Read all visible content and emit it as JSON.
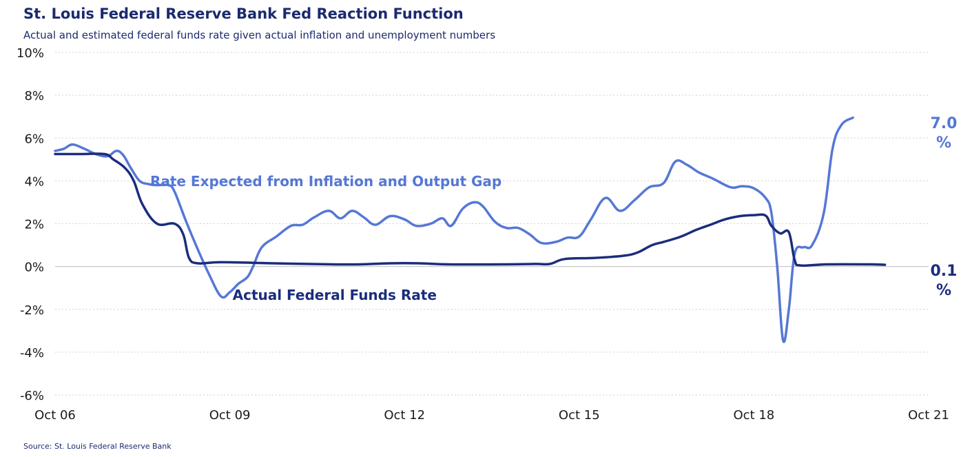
{
  "title": "St. Louis Federal Reserve Bank Fed Reaction Function",
  "subtitle": "Actual and estimated federal funds rate given actual inflation and unemployment numbers",
  "source": "Source: St. Louis Federal Reserve Bank",
  "chart_data": {
    "type": "line",
    "ylim": [
      -6,
      10
    ],
    "ytick_values": [
      -6,
      -4,
      -2,
      0,
      2,
      4,
      6,
      8,
      10
    ],
    "ytick_labels": [
      "-6%",
      "-4%",
      "-2%",
      "0%",
      "2%",
      "4%",
      "6%",
      "8%",
      "10%"
    ],
    "xlim": [
      2006.75,
      2021.75
    ],
    "xtick_values": [
      2006.75,
      2009.75,
      2012.75,
      2015.75,
      2018.75,
      2021.75
    ],
    "xtick_labels": [
      "Oct 06",
      "Oct 09",
      "Oct 12",
      "Oct 15",
      "Oct 18",
      "Oct 21"
    ],
    "grid": "horizontal dotted",
    "series": [
      {
        "name": "Rate Expected from Inflation and Output Gap",
        "color": "#5577d6",
        "end_label_line1": "7.0",
        "end_label_line2": "%",
        "points": [
          [
            2006.75,
            5.4
          ],
          [
            2006.9,
            5.5
          ],
          [
            2007.05,
            5.7
          ],
          [
            2007.25,
            5.5
          ],
          [
            2007.45,
            5.25
          ],
          [
            2007.65,
            5.15
          ],
          [
            2007.8,
            5.4
          ],
          [
            2007.92,
            5.2
          ],
          [
            2008.05,
            4.6
          ],
          [
            2008.2,
            4.0
          ],
          [
            2008.35,
            3.85
          ],
          [
            2008.5,
            3.8
          ],
          [
            2008.7,
            3.8
          ],
          [
            2008.8,
            3.5
          ],
          [
            2009.0,
            2.1
          ],
          [
            2009.2,
            0.8
          ],
          [
            2009.4,
            -0.4
          ],
          [
            2009.6,
            -1.4
          ],
          [
            2009.75,
            -1.2
          ],
          [
            2009.9,
            -0.8
          ],
          [
            2010.05,
            -0.5
          ],
          [
            2010.15,
            0.0
          ],
          [
            2010.3,
            0.9
          ],
          [
            2010.55,
            1.4
          ],
          [
            2010.8,
            1.9
          ],
          [
            2011.0,
            1.95
          ],
          [
            2011.2,
            2.3
          ],
          [
            2011.45,
            2.6
          ],
          [
            2011.65,
            2.25
          ],
          [
            2011.85,
            2.6
          ],
          [
            2012.05,
            2.3
          ],
          [
            2012.25,
            1.95
          ],
          [
            2012.5,
            2.35
          ],
          [
            2012.75,
            2.2
          ],
          [
            2012.95,
            1.9
          ],
          [
            2013.2,
            2.0
          ],
          [
            2013.4,
            2.25
          ],
          [
            2013.55,
            1.9
          ],
          [
            2013.75,
            2.7
          ],
          [
            2013.95,
            3.0
          ],
          [
            2014.1,
            2.8
          ],
          [
            2014.3,
            2.1
          ],
          [
            2014.5,
            1.8
          ],
          [
            2014.7,
            1.8
          ],
          [
            2014.9,
            1.5
          ],
          [
            2015.1,
            1.1
          ],
          [
            2015.35,
            1.15
          ],
          [
            2015.55,
            1.35
          ],
          [
            2015.75,
            1.4
          ],
          [
            2015.95,
            2.2
          ],
          [
            2016.2,
            3.2
          ],
          [
            2016.45,
            2.6
          ],
          [
            2016.7,
            3.1
          ],
          [
            2016.95,
            3.7
          ],
          [
            2017.2,
            3.9
          ],
          [
            2017.4,
            4.9
          ],
          [
            2017.6,
            4.75
          ],
          [
            2017.8,
            4.4
          ],
          [
            2018.05,
            4.1
          ],
          [
            2018.35,
            3.7
          ],
          [
            2018.55,
            3.75
          ],
          [
            2018.75,
            3.65
          ],
          [
            2018.95,
            3.2
          ],
          [
            2019.05,
            2.5
          ],
          [
            2019.15,
            0.0
          ],
          [
            2019.25,
            -3.45
          ],
          [
            2019.35,
            -2.0
          ],
          [
            2019.45,
            0.6
          ],
          [
            2019.6,
            0.9
          ],
          [
            2019.75,
            1.0
          ],
          [
            2019.95,
            2.5
          ],
          [
            2020.1,
            5.5
          ],
          [
            2020.25,
            6.6
          ],
          [
            2020.45,
            6.95
          ]
        ]
      },
      {
        "name": "Actual Federal Funds Rate",
        "color": "#1a2d7c",
        "end_label_line1": "0.1",
        "end_label_line2": "%",
        "points": [
          [
            2006.75,
            5.25
          ],
          [
            2007.2,
            5.25
          ],
          [
            2007.6,
            5.25
          ],
          [
            2007.75,
            5.0
          ],
          [
            2007.95,
            4.6
          ],
          [
            2008.1,
            4.0
          ],
          [
            2008.25,
            2.9
          ],
          [
            2008.5,
            2.0
          ],
          [
            2008.8,
            2.0
          ],
          [
            2008.95,
            1.5
          ],
          [
            2009.05,
            0.4
          ],
          [
            2009.2,
            0.15
          ],
          [
            2009.6,
            0.2
          ],
          [
            2010.5,
            0.15
          ],
          [
            2011.5,
            0.1
          ],
          [
            2012.0,
            0.1
          ],
          [
            2012.5,
            0.15
          ],
          [
            2013.0,
            0.15
          ],
          [
            2013.5,
            0.1
          ],
          [
            2014.5,
            0.1
          ],
          [
            2015.0,
            0.12
          ],
          [
            2015.25,
            0.12
          ],
          [
            2015.5,
            0.35
          ],
          [
            2016.0,
            0.4
          ],
          [
            2016.5,
            0.5
          ],
          [
            2016.75,
            0.65
          ],
          [
            2017.0,
            1.0
          ],
          [
            2017.2,
            1.15
          ],
          [
            2017.5,
            1.4
          ],
          [
            2017.75,
            1.7
          ],
          [
            2018.0,
            1.95
          ],
          [
            2018.25,
            2.2
          ],
          [
            2018.5,
            2.35
          ],
          [
            2018.75,
            2.4
          ],
          [
            2018.95,
            2.38
          ],
          [
            2019.05,
            1.9
          ],
          [
            2019.2,
            1.55
          ],
          [
            2019.35,
            1.6
          ],
          [
            2019.45,
            0.3
          ],
          [
            2019.55,
            0.05
          ],
          [
            2020.0,
            0.1
          ],
          [
            2020.75,
            0.1
          ],
          [
            2021.0,
            0.08
          ]
        ]
      }
    ],
    "annotations": [
      {
        "text": "Rate Expected from Inflation and Output Gap",
        "series": 0,
        "x": 2011.4,
        "y": 3.75
      },
      {
        "text": "Actual Federal Funds Rate",
        "series": 1,
        "x": 2011.55,
        "y": -1.55
      }
    ]
  }
}
